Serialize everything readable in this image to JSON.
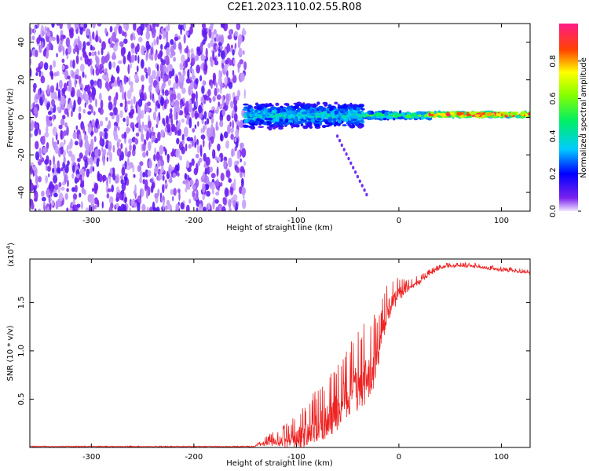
{
  "title": "C2E1.2023.110.02.55.R08",
  "chart_data": [
    {
      "type": "heatmap",
      "xlabel": "Height of straight line (km)",
      "ylabel": "Frequency (Hz)",
      "xlim": [
        -360,
        128
      ],
      "ylim": [
        -50,
        50
      ],
      "x_ticks": [
        -300,
        -200,
        -100,
        0,
        100
      ],
      "x_tick_labels": [
        "-300",
        "-200",
        "-100",
        "0",
        "100"
      ],
      "y_ticks": [
        -40,
        -20,
        0,
        20,
        40
      ],
      "y_tick_labels": [
        "-40",
        "-20",
        "0",
        "20",
        "40"
      ],
      "colorbar": {
        "label": "Normalized spectral amplitude",
        "range": [
          0,
          1
        ],
        "ticks": [
          0.0,
          0.2,
          0.4,
          0.6,
          0.8
        ],
        "tick_labels": [
          "0.0",
          "0.2",
          "0.4",
          "0.6",
          "0.8"
        ],
        "colors": [
          "#e8d8ff",
          "#6a00e8",
          "#0000ff",
          "#00ddff",
          "#00ff00",
          "#ffff00",
          "#ff0000",
          "#ff1a8c"
        ]
      },
      "regions": [
        {
          "x_range": [
            -360,
            -150
          ],
          "freq_range": [
            -50,
            50
          ],
          "amplitude": 0.1,
          "description": "broadband noise"
        },
        {
          "x_range": [
            -150,
            -35
          ],
          "freq_center": 1,
          "freq_halfwidth": 7,
          "amplitude": 0.35
        },
        {
          "x_range": [
            -35,
            30
          ],
          "freq_center": 1,
          "freq_halfwidth": 2,
          "amplitude": 0.5
        },
        {
          "x_range": [
            30,
            128
          ],
          "freq_center": 1.5,
          "freq_halfwidth": 1.5,
          "amplitude": 0.9
        }
      ],
      "grid": false
    },
    {
      "type": "line",
      "xlabel": "Height of straight line (km)",
      "ylabel": "SNR (10 * v/v)",
      "y_multiplier_label": "(x10",
      "y_multiplier_exponent": "4",
      "y_multiplier_suffix": ")",
      "xlim": [
        -360,
        128
      ],
      "ylim": [
        0,
        1.95
      ],
      "x_ticks": [
        -300,
        -200,
        -100,
        0,
        100
      ],
      "x_tick_labels": [
        "-300",
        "-200",
        "-100",
        "0",
        "100"
      ],
      "y_ticks": [
        0.5,
        1.0,
        1.5
      ],
      "y_tick_labels": [
        "0.5",
        "1.0",
        "1.5"
      ],
      "series": [
        {
          "color": "#ee2222",
          "x": [
            -360,
            -300,
            -200,
            -140,
            -125,
            -110,
            -100,
            -90,
            -80,
            -70,
            -60,
            -50,
            -40,
            -30,
            -20,
            -15,
            -10,
            0,
            10,
            20,
            30,
            40,
            50,
            60,
            70,
            80,
            90,
            100,
            110,
            120,
            128
          ],
          "y": [
            0.0,
            0.0,
            0.0,
            0.02,
            0.06,
            0.08,
            0.1,
            0.15,
            0.22,
            0.3,
            0.4,
            0.55,
            0.65,
            0.75,
            0.95,
            1.2,
            1.45,
            1.6,
            1.65,
            1.72,
            1.8,
            1.86,
            1.88,
            1.88,
            1.88,
            1.87,
            1.85,
            1.84,
            1.83,
            1.82,
            1.81
          ],
          "noise_envelope": [
            0.0,
            0.0,
            0.0,
            0.01,
            0.08,
            0.15,
            0.22,
            0.3,
            0.35,
            0.4,
            0.45,
            0.5,
            0.55,
            0.55,
            0.45,
            0.35,
            0.25,
            0.15,
            0.08,
            0.06,
            0.04,
            0.03,
            0.03,
            0.03,
            0.03,
            0.03,
            0.03,
            0.03,
            0.03,
            0.03,
            0.03
          ]
        }
      ],
      "grid": false
    }
  ]
}
